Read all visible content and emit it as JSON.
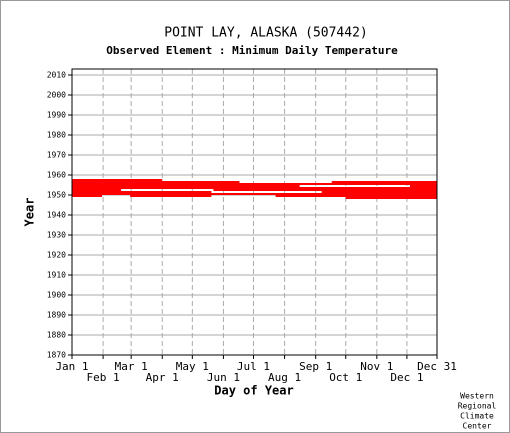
{
  "chart_data": {
    "type": "availability",
    "title": "POINT LAY, ALASKA   (507442)",
    "subtitle": "Observed Element : Minimum Daily Temperature",
    "ylabel": "Year",
    "xlabel": "Day of Year",
    "credit": [
      "Western",
      "Regional",
      "Climate",
      "Center"
    ],
    "color": "#ff0000",
    "xlim": [
      1,
      365
    ],
    "ylim": [
      1870,
      2013
    ],
    "xticks": [
      {
        "value": 1,
        "label": "Jan 1"
      },
      {
        "value": 32,
        "label": "Feb 1"
      },
      {
        "value": 60,
        "label": "Mar 1"
      },
      {
        "value": 91,
        "label": "Apr 1"
      },
      {
        "value": 121,
        "label": "May 1"
      },
      {
        "value": 152,
        "label": "Jun 1"
      },
      {
        "value": 182,
        "label": "Jul 1"
      },
      {
        "value": 213,
        "label": "Aug 1"
      },
      {
        "value": 244,
        "label": "Sep 1"
      },
      {
        "value": 274,
        "label": "Oct 1"
      },
      {
        "value": 305,
        "label": "Nov 1"
      },
      {
        "value": 335,
        "label": "Dec 1"
      },
      {
        "value": 365,
        "label": "Dec 31"
      }
    ],
    "yticks": [
      1870,
      1880,
      1890,
      1900,
      1910,
      1920,
      1930,
      1940,
      1950,
      1960,
      1970,
      1980,
      1990,
      2000,
      2010
    ],
    "grid": true,
    "rows": [
      {
        "year": 1957,
        "segments": [
          [
            1,
            91
          ]
        ]
      },
      {
        "year": 1956,
        "segments": [
          [
            1,
            168
          ],
          [
            260,
            365
          ]
        ]
      },
      {
        "year": 1955,
        "segments": [
          [
            1,
            365
          ]
        ]
      },
      {
        "year": 1954,
        "segments": [
          [
            1,
            228
          ],
          [
            338,
            365
          ]
        ]
      },
      {
        "year": 1953,
        "segments": [
          [
            1,
            365
          ]
        ]
      },
      {
        "year": 1952,
        "segments": [
          [
            1,
            50
          ],
          [
            142,
            365
          ]
        ]
      },
      {
        "year": 1951,
        "segments": [
          [
            1,
            140
          ],
          [
            250,
            365
          ]
        ]
      },
      {
        "year": 1950,
        "segments": [
          [
            1,
            365
          ]
        ]
      },
      {
        "year": 1949,
        "segments": [
          [
            1,
            31
          ],
          [
            59,
            140
          ],
          [
            204,
            365
          ]
        ]
      },
      {
        "year": 1948,
        "segments": [
          [
            274,
            365
          ]
        ]
      }
    ]
  }
}
